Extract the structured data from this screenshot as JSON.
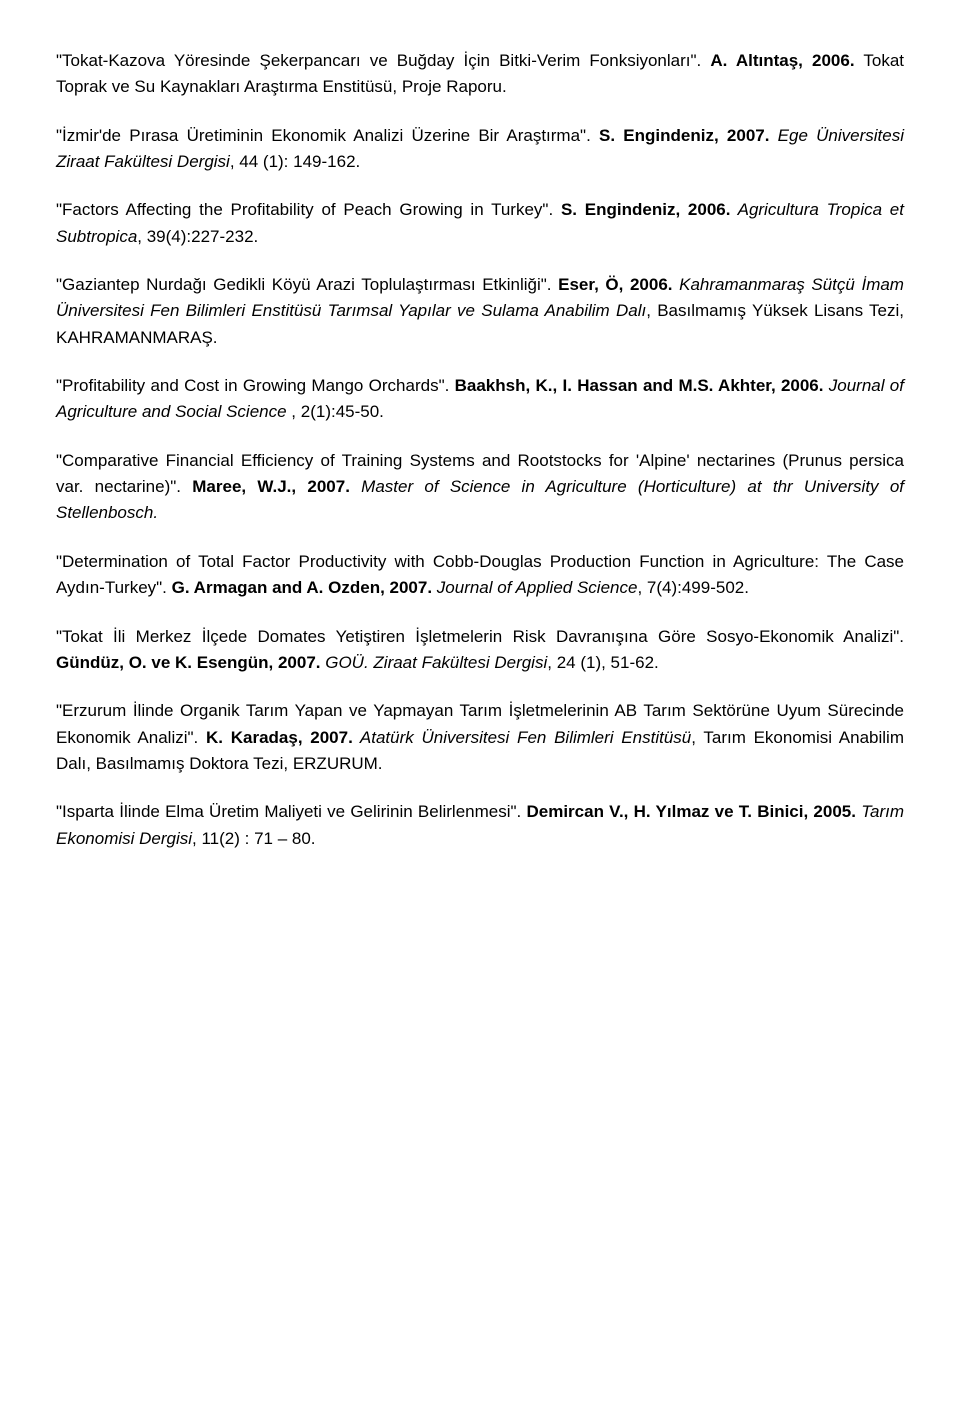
{
  "refs": [
    {
      "title_q": "\"Tokat-Kazova Yöresinde Şekerpancarı ve Buğday İçin Bitki-Verim Fonksiyonları\". ",
      "author": "A. Altıntaş, 2006.",
      "rest_plain": " Tokat Toprak ve Su Kaynakları Araştırma Enstitüsü, Proje Raporu."
    },
    {
      "title_q": "\"İzmir'de Pırasa Üretiminin Ekonomik Analizi Üzerine Bir Araştırma\". ",
      "author": "S. Engindeniz, 2007.",
      "journal": " Ege Üniversitesi Ziraat Fakültesi Dergisi",
      "rest_plain": ", 44 (1): 149-162."
    },
    {
      "title_q": "\"Factors Affecting the Profitability of Peach Growing in Turkey\". ",
      "author": "S. Engindeniz, 2006.",
      "journal": " Agricultura Tropica et Subtropica",
      "rest_plain": ", 39(4):227-232."
    },
    {
      "title_q": "\"Gaziantep Nurdağı Gedikli Köyü Arazi Toplulaştırması Etkinliği\". ",
      "author": "Eser, Ö, 2006.",
      "journal": " Kahramanmaraş Sütçü İmam Üniversitesi Fen Bilimleri Enstitüsü Tarımsal Yapılar ve Sulama Anabilim Dalı",
      "rest_plain": ", Basılmamış Yüksek Lisans Tezi, KAHRAMANMARAŞ."
    },
    {
      "title_q": "\"Profitability and Cost in Growing Mango Orchards\". ",
      "author": "Baakhsh, K., I. Hassan and M.S. Akhter, 2006.",
      "journal": " Journal of Agriculture and Social Science ",
      "rest_plain": ", 2(1):45-50."
    },
    {
      "title_q": "\"Comparative Financial Efficiency of Training Systems and Rootstocks for 'Alpine' nectarines (Prunus persica var. nectarine)\". ",
      "author": "Maree, W.J., 2007.",
      "journal": " Master of Science in Agriculture (Horticulture) at thr University of Stellenbosch.",
      "rest_plain": ""
    },
    {
      "title_q": "\"Determination of Total Factor Productivity with Cobb-Douglas Production Function in Agriculture: The Case Aydın-Turkey\". ",
      "author": "G. Armagan and A. Ozden, 2007.",
      "journal": " Journal of Applied Science",
      "rest_plain": ", 7(4):499-502."
    },
    {
      "title_q": "\"Tokat İli Merkez İlçede Domates Yetiştiren İşletmelerin Risk Davranışına Göre Sosyo-Ekonomik Analizi\". ",
      "author": "Gündüz, O. ve K. Esengün, 2007.",
      "journal": " GOÜ. Ziraat Fakültesi Dergisi",
      "rest_plain": ", 24 (1), 51-62."
    },
    {
      "title_q": "\"Erzurum İlinde Organik Tarım Yapan ve Yapmayan Tarım İşletmelerinin AB Tarım Sektörüne Uyum Sürecinde Ekonomik Analizi\". ",
      "author": "K. Karadaş, 2007.",
      "journal": " Atatürk Üniversitesi Fen Bilimleri Enstitüsü",
      "rest_plain": ", Tarım Ekonomisi Anabilim Dalı, Basılmamış Doktora Tezi, ERZURUM."
    },
    {
      "title_q": "\"Isparta İlinde Elma Üretim Maliyeti ve Gelirinin Belirlenmesi\". ",
      "author": "Demircan V., H. Yılmaz ve T. Binici, 2005.",
      "journal": " Tarım Ekonomisi Dergisi",
      "rest_plain": ", 11(2) : 71 – 80."
    }
  ]
}
